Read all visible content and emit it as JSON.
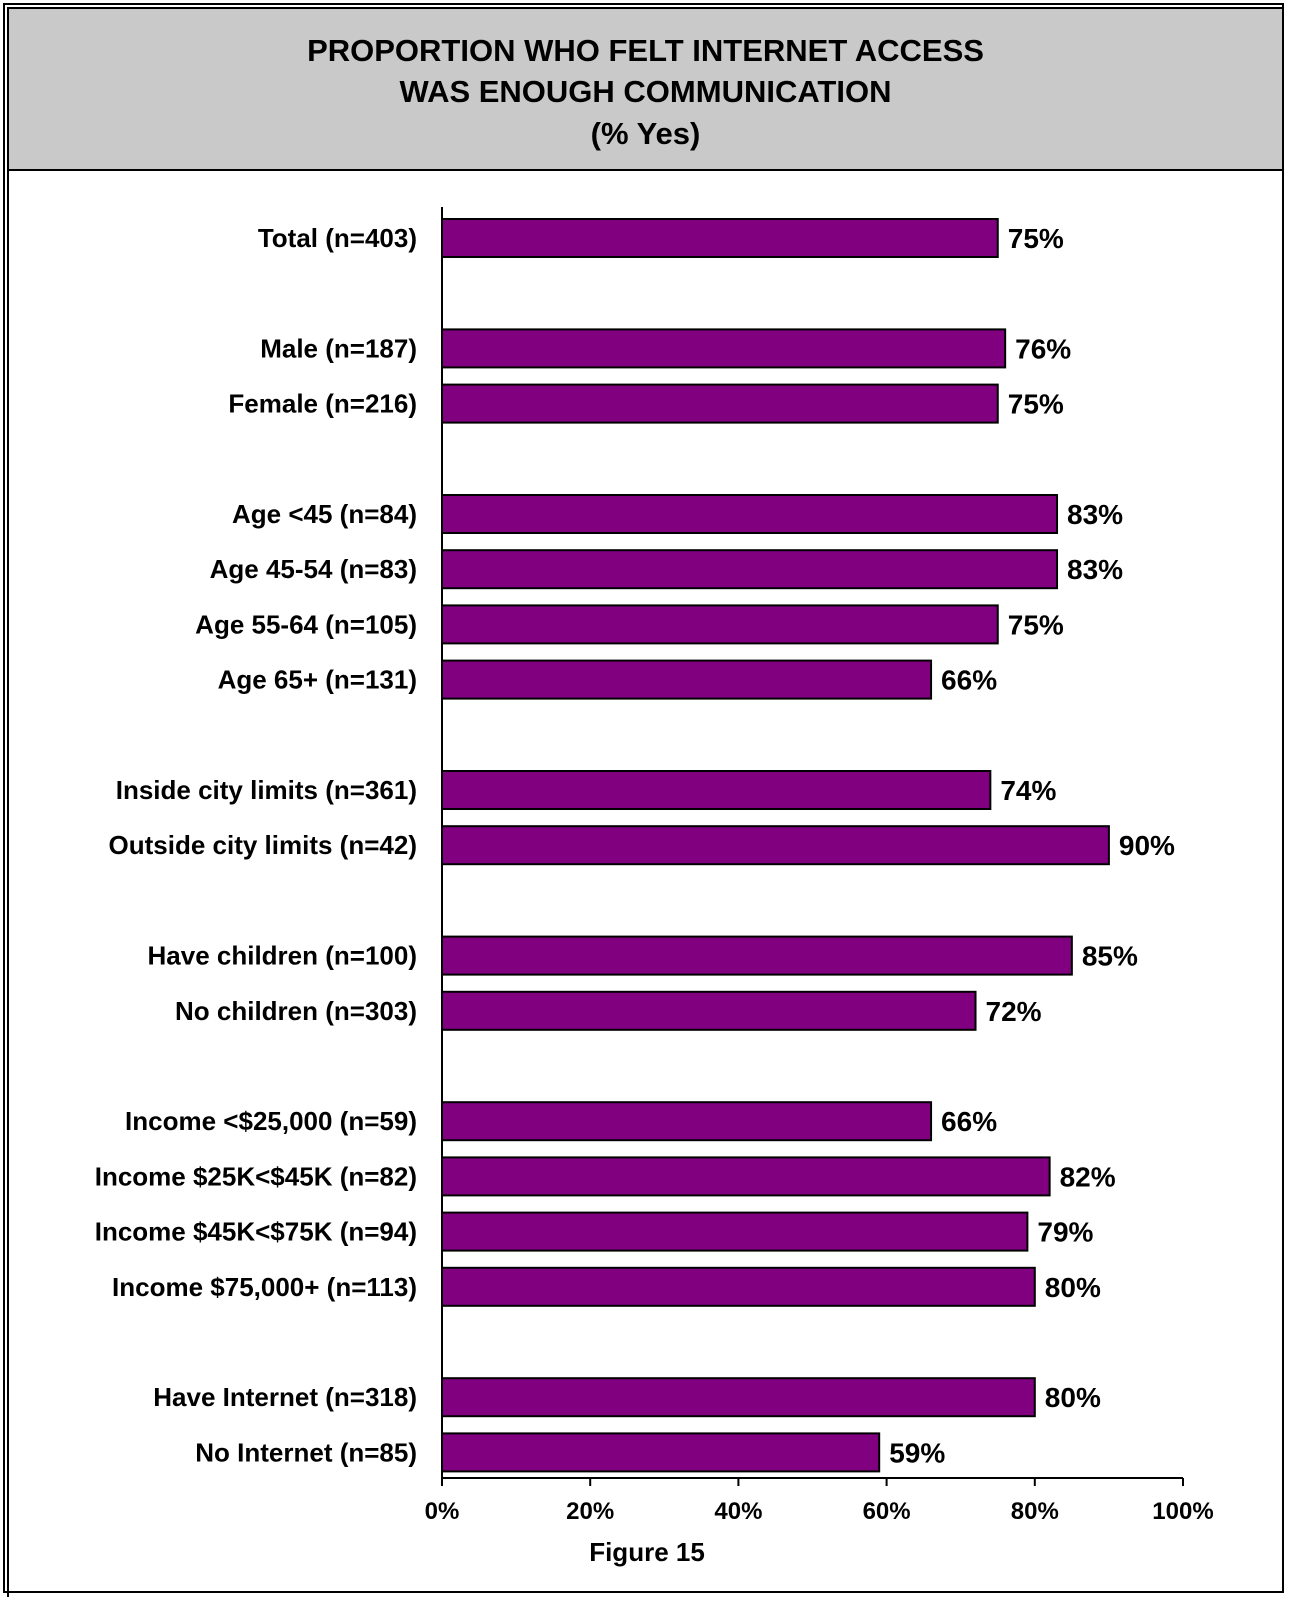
{
  "chart_data": {
    "type": "bar",
    "orientation": "horizontal",
    "title": "PROPORTION WHO FELT INTERNET ACCESS WAS ENOUGH COMMUNICATION",
    "title_lines": [
      "PROPORTION WHO FELT INTERNET ACCESS",
      "WAS ENOUGH COMMUNICATION",
      "(% Yes)"
    ],
    "subtitle": "(% Yes)",
    "categories": [
      "Total (n=403)",
      "Male (n=187)",
      "Female (n=216)",
      "Age <45 (n=84)",
      "Age 45-54 (n=83)",
      "Age 55-64 (n=105)",
      "Age 65+ (n=131)",
      "Inside city limits (n=361)",
      "Outside city limits (n=42)",
      "Have children (n=100)",
      "No children (n=303)",
      "Income <$25,000 (n=59)",
      "Income $25K<$45K (n=82)",
      "Income $45K<$75K (n=94)",
      "Income $75,000+ (n=113)",
      "Have Internet (n=318)",
      "No Internet (n=85)"
    ],
    "values": [
      75,
      76,
      75,
      83,
      83,
      75,
      66,
      74,
      90,
      85,
      72,
      66,
      82,
      79,
      80,
      80,
      59
    ],
    "value_labels": [
      "75%",
      "76%",
      "75%",
      "83%",
      "83%",
      "75%",
      "66%",
      "74%",
      "90%",
      "85%",
      "72%",
      "66%",
      "82%",
      "79%",
      "80%",
      "80%",
      "59%"
    ],
    "groups": [
      [
        0
      ],
      [
        1,
        2
      ],
      [
        3,
        4,
        5,
        6
      ],
      [
        7,
        8
      ],
      [
        9,
        10
      ],
      [
        11,
        12,
        13,
        14
      ],
      [
        15,
        16
      ]
    ],
    "xlim": [
      0,
      100
    ],
    "xticks": [
      0,
      20,
      40,
      60,
      80,
      100
    ],
    "xtick_labels": [
      "0%",
      "20%",
      "40%",
      "60%",
      "80%",
      "100%"
    ],
    "xlabel": "",
    "ylabel": "",
    "grid": false,
    "legend": "none",
    "bar_color": "#800080",
    "caption": "Figure 15"
  },
  "colors": {
    "title_band": "#c9c9c9",
    "bar": "#800080",
    "bar_stroke": "#000000"
  }
}
